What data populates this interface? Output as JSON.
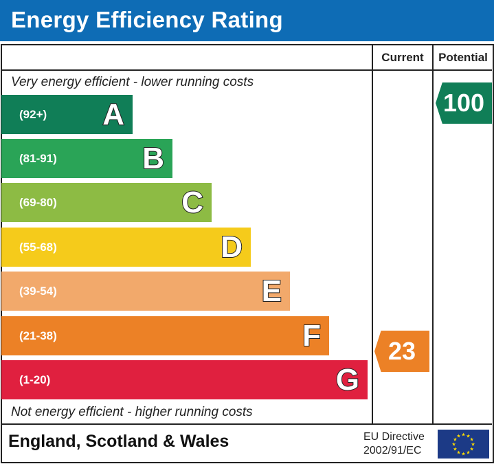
{
  "header": {
    "title": "Energy Efficiency Rating"
  },
  "chart_data": {
    "type": "bar",
    "title": "Energy Efficiency Rating",
    "columns": [
      "Current",
      "Potential"
    ],
    "top_note": "Very energy efficient - lower running costs",
    "bottom_note": "Not energy efficient - higher running costs",
    "bands": [
      {
        "letter": "A",
        "range": "(92+)",
        "color": "#107e57"
      },
      {
        "letter": "B",
        "range": "(81-91)",
        "color": "#2aa457"
      },
      {
        "letter": "C",
        "range": "(69-80)",
        "color": "#8dbb44"
      },
      {
        "letter": "D",
        "range": "(55-68)",
        "color": "#f5cb1b"
      },
      {
        "letter": "E",
        "range": "(39-54)",
        "color": "#f2a96b"
      },
      {
        "letter": "F",
        "range": "(21-38)",
        "color": "#ec8126"
      },
      {
        "letter": "G",
        "range": "(1-20)",
        "color": "#e0203f"
      }
    ],
    "current": {
      "value": 23,
      "band": "F",
      "color": "#ec8126"
    },
    "potential": {
      "value": 100,
      "band": "A",
      "color": "#107e57"
    }
  },
  "footer": {
    "region": "England, Scotland & Wales",
    "directive_line1": "EU Directive",
    "directive_line2": "2002/91/EC"
  }
}
